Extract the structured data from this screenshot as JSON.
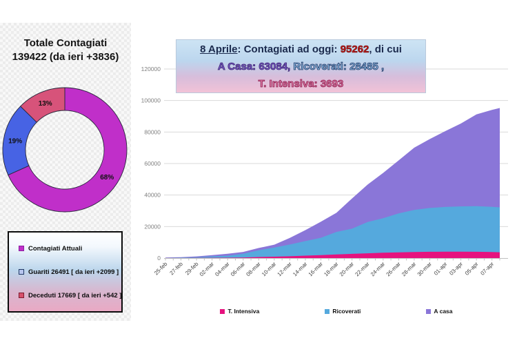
{
  "left_panel": {
    "title_line1": "Totale Contagiati",
    "title_line2": "139422 (da ieri +3836)",
    "legend": {
      "items": [
        {
          "label": "Contagiati Attuali",
          "swatch": "#C02FC9",
          "swatch_border": "#8A1FA0"
        },
        {
          "label": "Guariti 26491 [ da ieri +2099 ]",
          "swatch": "#B7C5EE",
          "swatch_border": "#1F3864"
        },
        {
          "label": "Deceduti 17669 [ da ieri +542 ]",
          "swatch": "#D7506B",
          "swatch_border": "#7C1A2E"
        }
      ]
    }
  },
  "title_box": {
    "date": "8 Aprile",
    "line1_mid": ": Contagiati ad oggi: ",
    "total_today": "95262",
    "line1_suffix": ", di cui",
    "home": "A Casa: 63084,",
    "hospitalized": " Ricoverati: 28485 ,",
    "icu": "T. Intensiva: 3693",
    "colors": {
      "main": "#1B2A4D",
      "total": "#C51A1A",
      "home": "#7A5EC9",
      "hospitalized": "#8FBCE6",
      "icu": "#DD7CA7"
    }
  },
  "chart_data": [
    {
      "type": "pie",
      "subtype": "donut",
      "title": "Totale Contagiati 139422 (da ieri +3836)",
      "labels": [
        "Contagiati Attuali",
        "Guariti",
        "Deceduti"
      ],
      "values": [
        95262,
        26491,
        17669
      ],
      "pct_labels": [
        "68%",
        "19%",
        "13%"
      ],
      "colors": [
        "#C02FC9",
        "#4763E4",
        "#D7537A"
      ],
      "start_angle": "top, clockwise",
      "legend_position": "below in gradient box"
    },
    {
      "type": "area",
      "stacked": true,
      "title": "8 Aprile: Contagiati ad oggi: 95262, di cui A Casa: 63084, Ricoverati: 28485 , T. Intensiva: 3693",
      "x_labels": [
        "25-feb",
        "27-feb",
        "29-feb",
        "02-mar",
        "04-mar",
        "06-mar",
        "08-mar",
        "10-mar",
        "12-mar",
        "14-mar",
        "16-mar",
        "18-mar",
        "20-mar",
        "22-mar",
        "24-mar",
        "26-mar",
        "28-mar",
        "30-mar",
        "01-apr",
        "03-apr",
        "05-apr",
        "07-apr"
      ],
      "day_offsets": [
        0,
        2,
        4,
        6,
        8,
        10,
        12,
        14,
        16,
        18,
        20,
        22,
        24,
        26,
        28,
        30,
        32,
        34,
        36,
        38,
        40,
        42,
        43
      ],
      "series": [
        {
          "name": "T. Intensiva",
          "color": "#E6127E",
          "values": [
            35,
            64,
            105,
            166,
            229,
            351,
            650,
            877,
            1153,
            1518,
            1851,
            2257,
            2655,
            3009,
            3396,
            3612,
            3856,
            3981,
            4035,
            4068,
            3977,
            3792,
            3693
          ]
        },
        {
          "name": "Ricoverati",
          "color": "#55A9DD",
          "values": [
            114,
            248,
            401,
            908,
            1263,
            2394,
            4316,
            5838,
            7426,
            9268,
            11025,
            14363,
            16020,
            19846,
            21937,
            24753,
            26676,
            27795,
            28403,
            28741,
            28949,
            28718,
            28485
          ]
        },
        {
          "name": "A casa",
          "color": "#8A76D8",
          "values": [
            162,
            276,
            543,
            761,
            1214,
            1171,
            1421,
            1799,
            4260,
            6964,
            10197,
            12090,
            19185,
            23783,
            28697,
            33648,
            39533,
            43752,
            48134,
            52579,
            58320,
            61557,
            63084
          ]
        }
      ],
      "ylim": [
        0,
        120000
      ],
      "yticks": [
        0,
        20000,
        40000,
        60000,
        80000,
        100000,
        120000
      ],
      "grid": "horizontal",
      "legend_position": "bottom"
    }
  ]
}
